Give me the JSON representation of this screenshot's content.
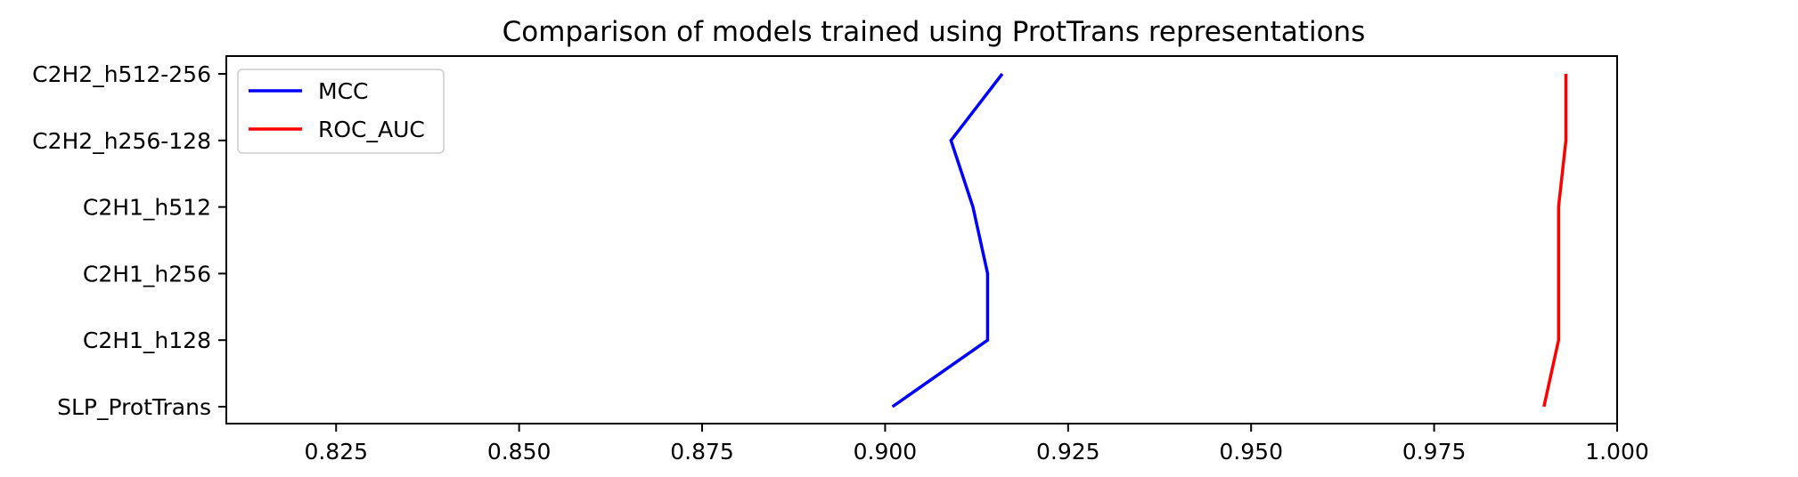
{
  "chart_data": {
    "type": "line",
    "orientation": "horizontal",
    "title": "Comparison of models trained using ProtTrans representations",
    "xlabel": "",
    "ylabel": "",
    "categories": [
      "SLP_ProtTrans",
      "C2H1_h128",
      "C2H1_h256",
      "C2H1_h512",
      "C2H2_h256-128",
      "C2H2_h512-256"
    ],
    "xlim": [
      0.81,
      1.0
    ],
    "xticks": [
      "0.825",
      "0.850",
      "0.875",
      "0.900",
      "0.925",
      "0.950",
      "0.975",
      "1.000"
    ],
    "series": [
      {
        "name": "MCC",
        "color": "#0000ff",
        "values": [
          0.901,
          0.914,
          0.914,
          0.912,
          0.909,
          0.916
        ]
      },
      {
        "name": "ROC_AUC",
        "color": "#ff0000",
        "values": [
          0.99,
          0.992,
          0.992,
          0.992,
          0.993,
          0.993
        ]
      }
    ],
    "grid": false,
    "legend": "upper left"
  }
}
